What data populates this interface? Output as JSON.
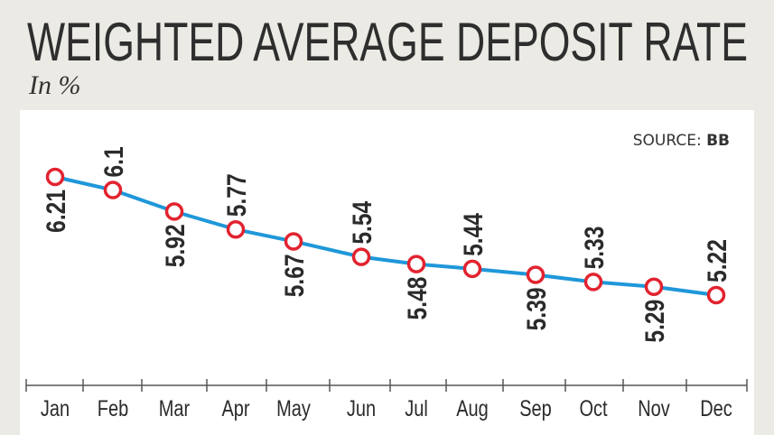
{
  "chart_data": {
    "type": "line",
    "title": "WEIGHTED AVERAGE DEPOSIT RATE",
    "subtitle": "In %",
    "source_label": "SOURCE:",
    "source_value": "BB",
    "categories": [
      "Jan",
      "Feb",
      "Mar",
      "Apr",
      "May",
      "Jun",
      "Jul",
      "Aug",
      "Sep",
      "Oct",
      "Nov",
      "Dec"
    ],
    "series": [
      {
        "values": [
          6.21,
          6.1,
          5.92,
          5.77,
          5.67,
          5.54,
          5.48,
          5.44,
          5.39,
          5.33,
          5.29,
          5.22
        ],
        "labels": [
          "6.21",
          "6.1",
          "5.92",
          "5.77",
          "5.67",
          "5.54",
          "5.48",
          "5.44",
          "5.39",
          "5.33",
          "5.29",
          "5.22"
        ]
      }
    ],
    "grid": false,
    "yaxis_visible": false,
    "colors": {
      "line": "#1f97d9",
      "marker": "#e2232f",
      "background": "#ebeae4",
      "panel": "#ffffff"
    }
  }
}
